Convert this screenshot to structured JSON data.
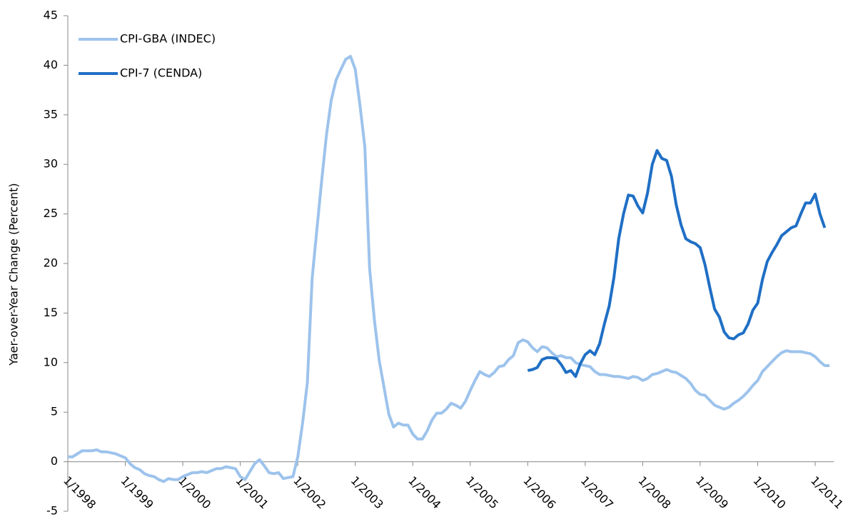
{
  "chart_data": {
    "type": "line",
    "y_label": "Yaer-over-Year Change (Percent)",
    "categories": [
      "1/1998",
      null,
      null,
      null,
      null,
      null,
      null,
      null,
      null,
      null,
      null,
      null,
      "1/1999",
      null,
      null,
      null,
      null,
      null,
      null,
      null,
      null,
      null,
      null,
      null,
      "1/2000",
      null,
      null,
      null,
      null,
      null,
      null,
      null,
      null,
      null,
      null,
      null,
      "1/2001",
      null,
      null,
      null,
      null,
      null,
      null,
      null,
      null,
      null,
      null,
      null,
      "1/2002",
      null,
      null,
      null,
      null,
      null,
      null,
      null,
      null,
      null,
      null,
      null,
      "1/2003",
      null,
      null,
      null,
      null,
      null,
      null,
      null,
      null,
      null,
      null,
      null,
      "1/2004",
      null,
      null,
      null,
      null,
      null,
      null,
      null,
      null,
      null,
      null,
      null,
      "1/2005",
      null,
      null,
      null,
      null,
      null,
      null,
      null,
      null,
      null,
      null,
      null,
      "1/2006",
      null,
      null,
      null,
      null,
      null,
      null,
      null,
      null,
      null,
      null,
      null,
      "1/2007",
      null,
      null,
      null,
      null,
      null,
      null,
      null,
      null,
      null,
      null,
      null,
      "1/2008",
      null,
      null,
      null,
      null,
      null,
      null,
      null,
      null,
      null,
      null,
      null,
      "1/2009",
      null,
      null,
      null,
      null,
      null,
      null,
      null,
      null,
      null,
      null,
      null,
      "1/2010",
      null,
      null,
      null,
      null,
      null,
      null,
      null,
      null,
      null,
      null,
      null,
      "1/2011",
      null,
      null,
      null
    ],
    "series": [
      {
        "name": "CPI-GBA (INDEC)",
        "color": "#9dc3ec",
        "values": [
          0.5,
          0.5,
          0.8,
          1.1,
          1.1,
          1.1,
          1.2,
          1.0,
          1.0,
          0.9,
          0.8,
          0.6,
          0.4,
          -0.2,
          -0.6,
          -0.8,
          -1.2,
          -1.4,
          -1.5,
          -1.8,
          -2.0,
          -1.7,
          -1.8,
          -1.8,
          -1.5,
          -1.3,
          -1.1,
          -1.1,
          -1.0,
          -1.1,
          -0.9,
          -0.7,
          -0.7,
          -0.5,
          -0.6,
          -0.7,
          -1.5,
          -1.8,
          -1.0,
          -0.2,
          0.2,
          -0.4,
          -1.1,
          -1.2,
          -1.1,
          -1.7,
          -1.6,
          -1.5,
          0.5,
          3.9,
          8.0,
          18.5,
          23.5,
          28.4,
          33.0,
          36.5,
          38.5,
          39.6,
          40.6,
          40.9,
          39.6,
          35.9,
          31.8,
          19.5,
          14.3,
          10.2,
          7.5,
          4.8,
          3.5,
          3.9,
          3.7,
          3.7,
          2.8,
          2.3,
          2.3,
          3.1,
          4.2,
          4.9,
          4.9,
          5.3,
          5.9,
          5.7,
          5.4,
          6.1,
          7.2,
          8.2,
          9.1,
          8.8,
          8.6,
          9.0,
          9.6,
          9.7,
          10.3,
          10.7,
          12.0,
          12.3,
          12.1,
          11.5,
          11.1,
          11.6,
          11.5,
          11.0,
          10.6,
          10.7,
          10.5,
          10.5,
          10.0,
          9.8,
          9.7,
          9.6,
          9.1,
          8.8,
          8.8,
          8.7,
          8.6,
          8.6,
          8.5,
          8.4,
          8.6,
          8.5,
          8.2,
          8.4,
          8.8,
          8.9,
          9.1,
          9.3,
          9.1,
          9.0,
          8.7,
          8.4,
          7.9,
          7.2,
          6.8,
          6.7,
          6.2,
          5.7,
          5.5,
          5.3,
          5.5,
          5.9,
          6.2,
          6.6,
          7.1,
          7.7,
          8.2,
          9.1,
          9.6,
          10.1,
          10.6,
          11.0,
          11.2,
          11.1,
          11.1,
          11.1,
          11.0,
          10.9,
          10.6,
          10.1,
          9.7,
          9.7
        ]
      },
      {
        "name": "CPI-7 (CENDA)",
        "color": "#1f6fc5",
        "values": [
          null,
          null,
          null,
          null,
          null,
          null,
          null,
          null,
          null,
          null,
          null,
          null,
          null,
          null,
          null,
          null,
          null,
          null,
          null,
          null,
          null,
          null,
          null,
          null,
          null,
          null,
          null,
          null,
          null,
          null,
          null,
          null,
          null,
          null,
          null,
          null,
          null,
          null,
          null,
          null,
          null,
          null,
          null,
          null,
          null,
          null,
          null,
          null,
          null,
          null,
          null,
          null,
          null,
          null,
          null,
          null,
          null,
          null,
          null,
          null,
          null,
          null,
          null,
          null,
          null,
          null,
          null,
          null,
          null,
          null,
          null,
          null,
          null,
          null,
          null,
          null,
          null,
          null,
          null,
          null,
          null,
          null,
          null,
          null,
          null,
          null,
          null,
          null,
          null,
          null,
          null,
          null,
          null,
          null,
          null,
          null,
          9.2,
          9.3,
          9.5,
          10.3,
          10.5,
          10.5,
          10.4,
          9.8,
          9.0,
          9.2,
          8.6,
          9.9,
          10.8,
          11.2,
          10.8,
          11.9,
          13.9,
          15.7,
          18.6,
          22.5,
          25.0,
          26.9,
          26.8,
          25.8,
          25.1,
          27.1,
          30.0,
          31.4,
          30.6,
          30.4,
          28.8,
          25.9,
          23.9,
          22.5,
          22.2,
          22.0,
          21.6,
          19.9,
          17.6,
          15.4,
          14.6,
          13.1,
          12.5,
          12.4,
          12.8,
          13.0,
          13.9,
          15.3,
          16.0,
          18.4,
          20.2,
          21.1,
          21.9,
          22.8,
          23.2,
          23.6,
          23.8,
          25.0,
          26.1,
          26.1,
          27.0,
          25.0,
          23.6,
          null
        ]
      }
    ],
    "ylim": [
      -5,
      45
    ],
    "yticks": [
      -5,
      0,
      5,
      10,
      15,
      20,
      25,
      30,
      35,
      40,
      45
    ],
    "legend": "upper left",
    "grid": false
  }
}
